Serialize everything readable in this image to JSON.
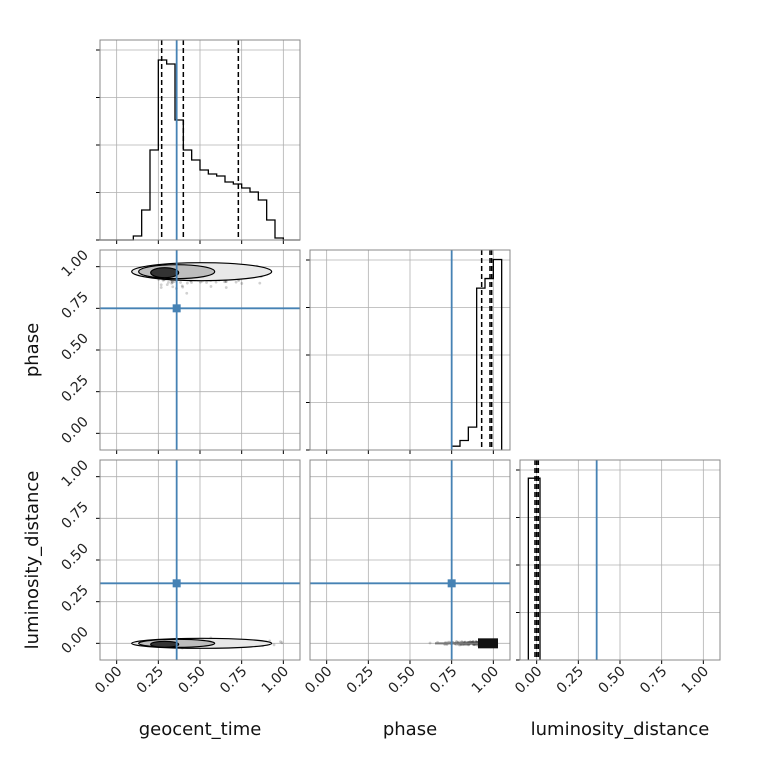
{
  "chart_data": {
    "type": "corner",
    "parameters": [
      "geocent_time",
      "phase",
      "luminosity_distance"
    ],
    "truth_color": "#4682b4",
    "tick_labels": [
      "0.00",
      "0.25",
      "0.50",
      "0.75",
      "1.00"
    ],
    "tick_values": [
      0,
      0.25,
      0.5,
      0.75,
      1.0
    ],
    "grid": true,
    "panels": [
      {
        "id": "hist-geocent_time",
        "type": "histogram",
        "x_param": "geocent_time",
        "xlim": [
          -0.1,
          1.1
        ],
        "bin_edges": [
          -0.1,
          -0.05,
          0,
          0.05,
          0.1,
          0.15,
          0.2,
          0.25,
          0.3,
          0.35,
          0.4,
          0.45,
          0.5,
          0.55,
          0.6,
          0.65,
          0.7,
          0.75,
          0.8,
          0.85,
          0.9,
          0.95,
          1.0,
          1.05,
          1.1
        ],
        "counts": [
          0,
          0,
          0,
          0,
          0.02,
          0.15,
          0.45,
          0.9,
          0.88,
          0.6,
          0.45,
          0.4,
          0.35,
          0.33,
          0.32,
          0.29,
          0.28,
          0.26,
          0.24,
          0.2,
          0.1,
          0.01,
          0,
          0
        ],
        "ylim": [
          0,
          1.0
        ],
        "quantiles": [
          0.27,
          0.4,
          0.73
        ],
        "truth": 0.36
      },
      {
        "id": "scatter-geocent_time-phase",
        "type": "2d",
        "x_param": "geocent_time",
        "y_param": "phase",
        "xlim": [
          -0.1,
          1.1
        ],
        "ylim": [
          -0.1,
          1.1
        ],
        "truth": [
          0.36,
          0.75
        ],
        "density_center": [
          0.3,
          0.97
        ]
      },
      {
        "id": "hist-phase",
        "type": "histogram",
        "x_param": "phase",
        "xlim": [
          -0.1,
          1.1
        ],
        "bin_edges": [
          0.75,
          0.8,
          0.85,
          0.9,
          0.95,
          1.0,
          1.05
        ],
        "counts": [
          0.02,
          0.05,
          0.12,
          0.85,
          0.9,
          1.0
        ],
        "ylim": [
          0,
          1.05
        ],
        "quantiles": [
          0.93,
          0.98,
          0.99
        ],
        "truth": 0.75
      },
      {
        "id": "scatter-geocent_time-luminosity_distance",
        "type": "2d",
        "x_param": "geocent_time",
        "y_param": "luminosity_distance",
        "xlim": [
          -0.1,
          1.1
        ],
        "ylim": [
          -0.1,
          1.1
        ],
        "truth": [
          0.36,
          0.36
        ],
        "density_center": [
          0.3,
          0.0
        ]
      },
      {
        "id": "scatter-phase-luminosity_distance",
        "type": "2d",
        "x_param": "phase",
        "y_param": "luminosity_distance",
        "xlim": [
          -0.1,
          1.1
        ],
        "ylim": [
          -0.1,
          1.1
        ],
        "truth": [
          0.75,
          0.36
        ],
        "density_center": [
          0.98,
          0.0
        ]
      },
      {
        "id": "hist-luminosity_distance",
        "type": "histogram",
        "x_param": "luminosity_distance",
        "xlim": [
          -0.1,
          1.1
        ],
        "bin_edges": [
          -0.05,
          0.0,
          0.02
        ],
        "counts": [
          1.0,
          1.0
        ],
        "ylim": [
          0,
          1.1
        ],
        "quantiles": [
          -0.01,
          0.0,
          0.01
        ],
        "truth": 0.36
      }
    ]
  }
}
